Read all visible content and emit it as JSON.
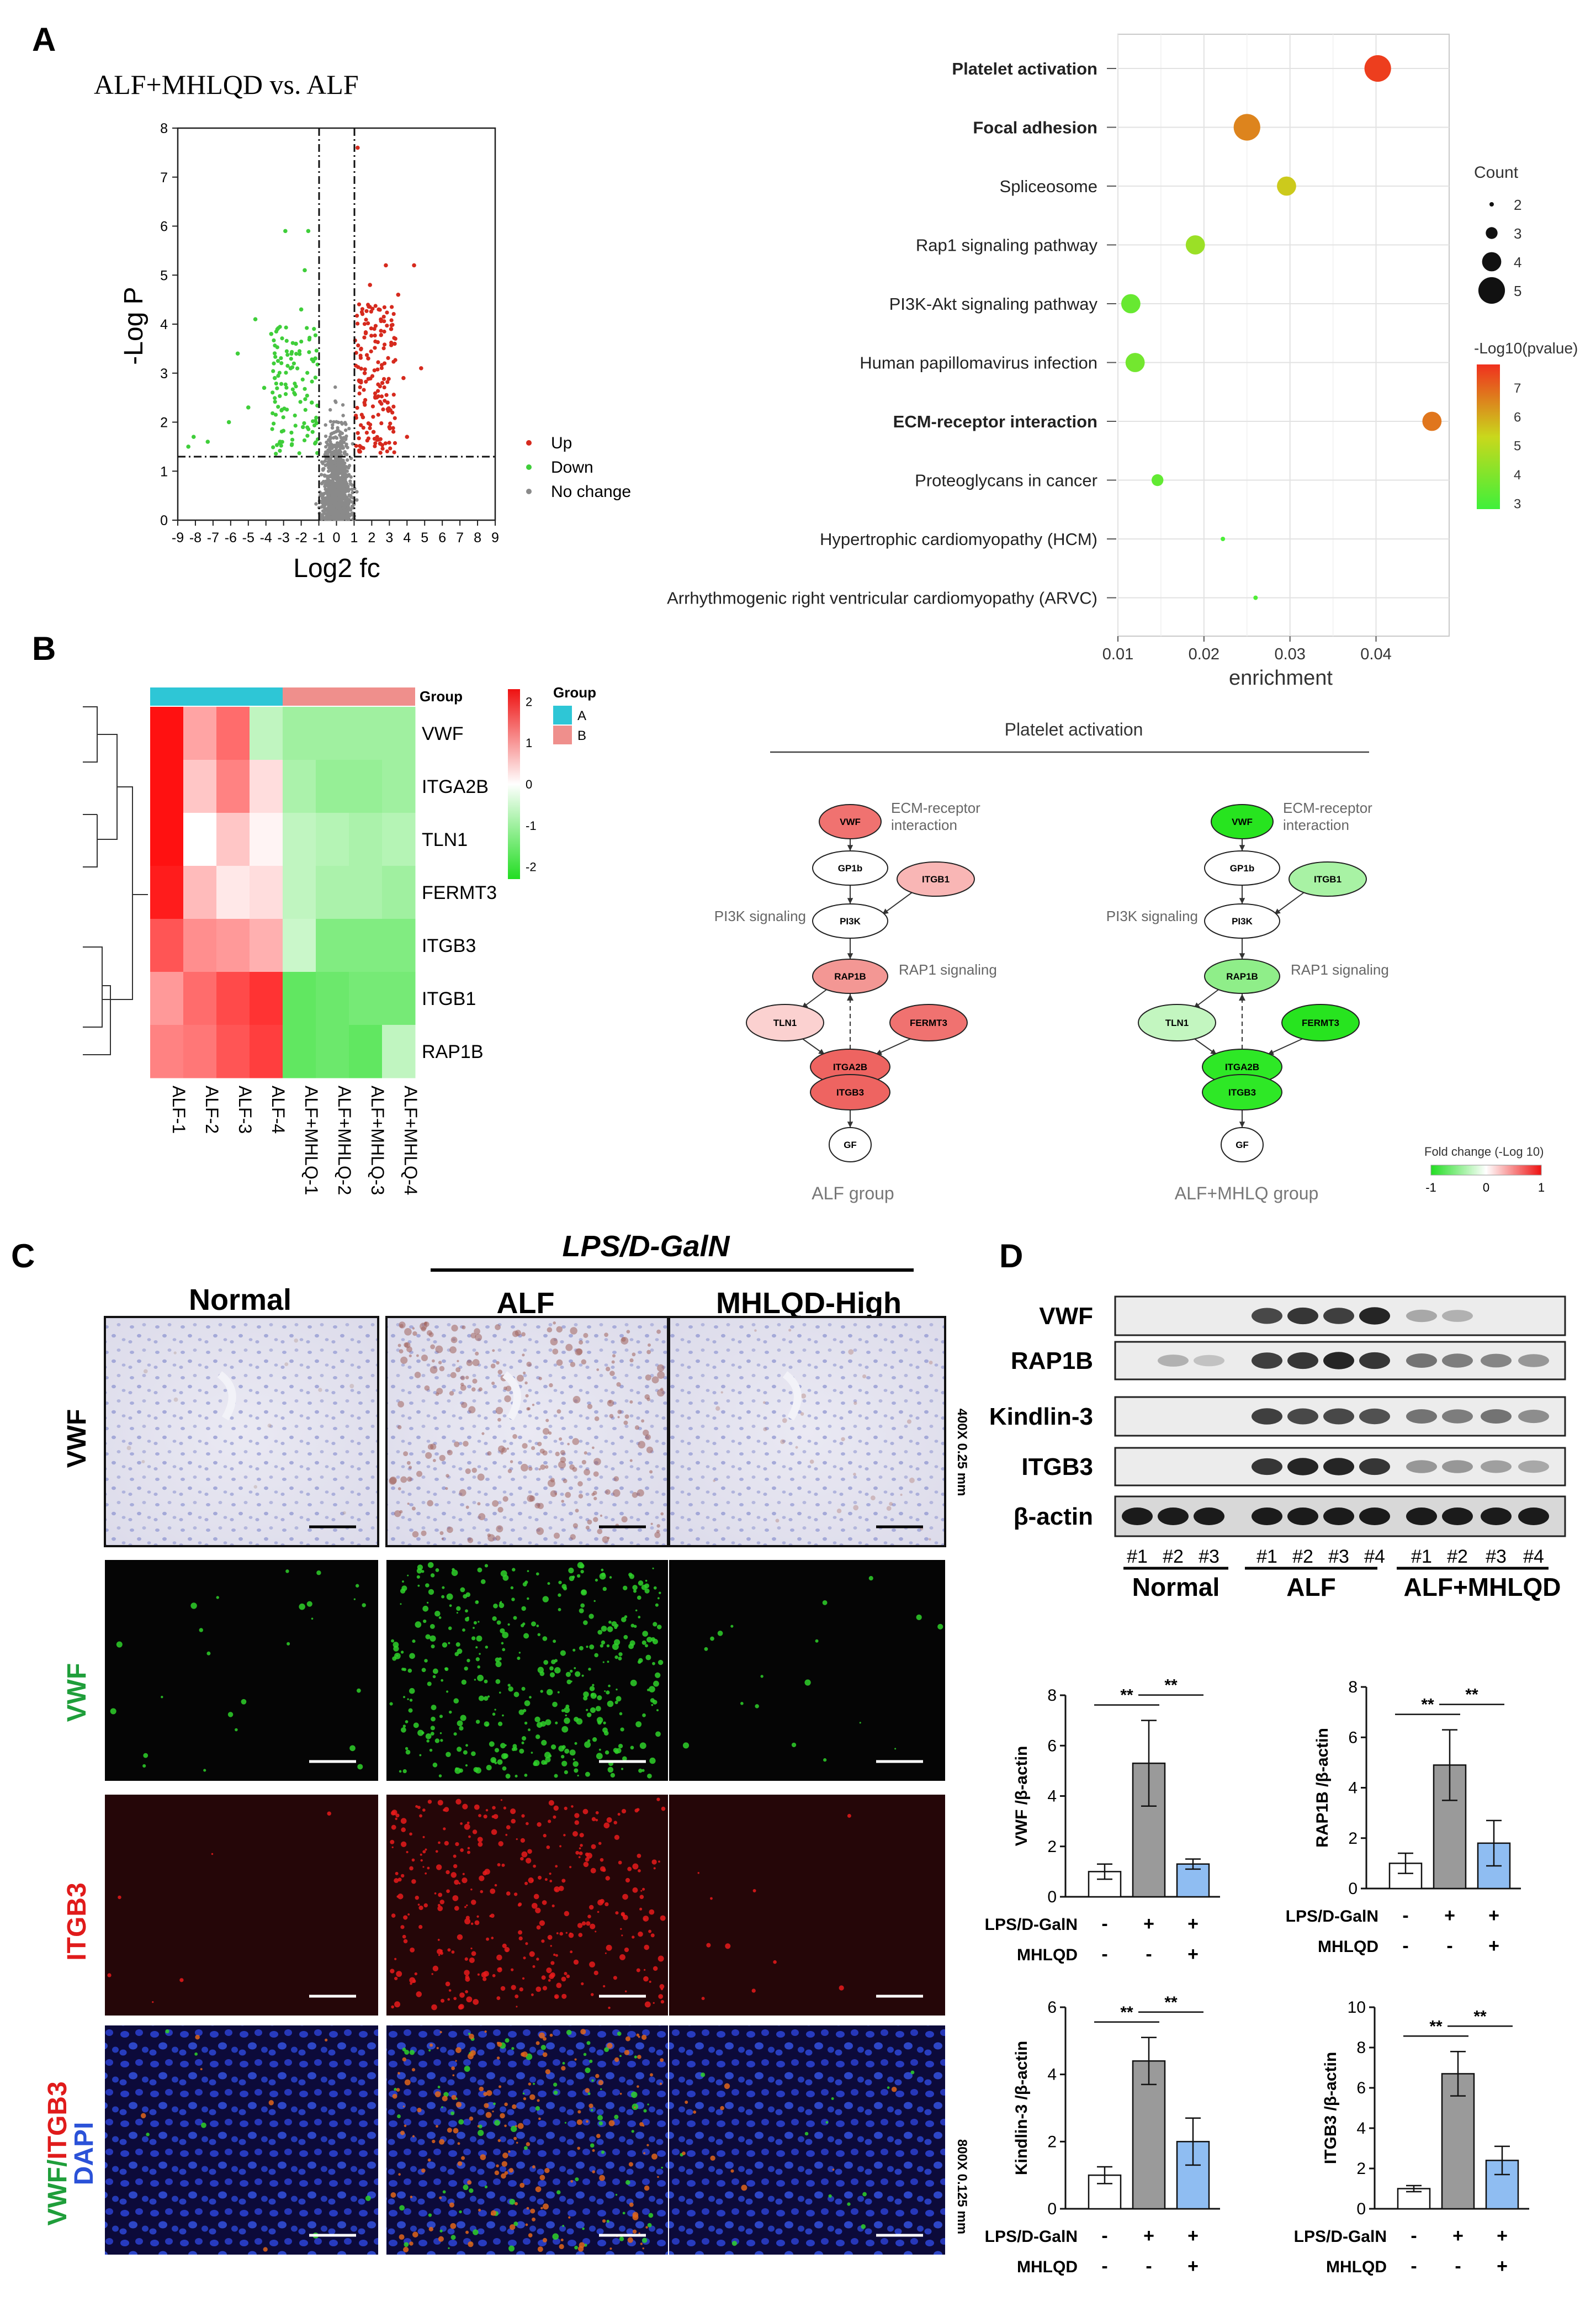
{
  "panels": {
    "a": "A",
    "b": "B",
    "c": "C",
    "d": "D"
  },
  "panel_a": {
    "volcano": {
      "title": "ALF+MHLQD vs. ALF",
      "xlabel": "Log2 fc",
      "ylabel": "-Log P",
      "legend": [
        "Up",
        "Down",
        "No change"
      ],
      "colors": {
        "up": "#d62a1e",
        "down": "#3fce3a",
        "nochange": "#8a8a8a"
      }
    },
    "chart_data": [
      {
        "type": "scatter",
        "title": "ALF+MHLQD vs. ALF",
        "xlabel": "Log2 fc",
        "ylabel": "-Log P",
        "xlim": [
          -9,
          9
        ],
        "ylim": [
          0,
          8
        ],
        "x_ticks": [
          -9,
          -8,
          -7,
          -6,
          -5,
          -4,
          -3,
          -2,
          -1,
          0,
          1,
          2,
          3,
          4,
          5,
          6,
          7,
          8,
          9
        ],
        "y_ticks": [
          0,
          1,
          2,
          3,
          4,
          5,
          6,
          7,
          8
        ],
        "thresholds": {
          "log2fc": [
            -1,
            1
          ],
          "neglogp": 1.3
        },
        "series": [
          {
            "name": "Up",
            "points": [
              [
                1.2,
                7.6
              ],
              [
                2.8,
                5.2
              ],
              [
                3.5,
                4.6
              ],
              [
                4.4,
                5.2
              ],
              [
                3.1,
                3.9
              ],
              [
                2.4,
                4.3
              ],
              [
                1.8,
                3.3
              ],
              [
                3.8,
                2.9
              ],
              [
                2.9,
                2.4
              ],
              [
                1.5,
                2.1
              ],
              [
                2.1,
                1.8
              ],
              [
                4.0,
                1.7
              ],
              [
                1.3,
                1.4
              ],
              [
                3.3,
                3.6
              ],
              [
                2.6,
                2.8
              ],
              [
                1.9,
                4.8
              ],
              [
                4.8,
                3.1
              ],
              [
                2.2,
                2.5
              ],
              [
                1.6,
                3.0
              ],
              [
                3.0,
                1.9
              ]
            ]
          },
          {
            "name": "Down",
            "points": [
              [
                -2.9,
                5.9
              ],
              [
                -1.6,
                5.9
              ],
              [
                -1.8,
                5.1
              ],
              [
                -4.6,
                4.1
              ],
              [
                -3.7,
                3.8
              ],
              [
                -5.6,
                3.4
              ],
              [
                -8.1,
                1.7
              ],
              [
                -8.4,
                1.5
              ],
              [
                -7.3,
                1.6
              ],
              [
                -6.1,
                2.0
              ],
              [
                -4.1,
                2.7
              ],
              [
                -2.6,
                3.1
              ],
              [
                -1.4,
                2.4
              ],
              [
                -3.2,
                1.6
              ],
              [
                -2.0,
                4.3
              ],
              [
                -5.0,
                2.3
              ],
              [
                -1.9,
                1.9
              ],
              [
                -3.5,
                2.9
              ],
              [
                -2.3,
                3.6
              ],
              [
                -1.2,
                3.3
              ]
            ]
          },
          {
            "name": "No change",
            "points": "dense cloud centered at log2fc 0, -LogP 0–5"
          }
        ]
      },
      {
        "type": "scatter",
        "xlabel": "enrichment",
        "xlim": [
          0.01,
          0.0485
        ],
        "x_ticks": [
          0.01,
          0.02,
          0.03,
          0.04
        ],
        "categories": [
          "Platelet activation",
          "Focal adhesion",
          "Spliceosome",
          "Rap1 signaling pathway",
          "PI3K-Akt signaling pathway",
          "Human papillomavirus infection",
          "ECM-receptor interaction",
          "Proteoglycans in cancer",
          "Hypertrophic cardiomyopathy (HCM)",
          "Arrhythmogenic right ventricular cardiomyopathy (ARVC)"
        ],
        "bold_categories": [
          "Platelet activation",
          "Focal adhesion",
          "ECM-receptor interaction"
        ],
        "enrichment": [
          0.0402,
          0.025,
          0.0296,
          0.019,
          0.0115,
          0.012,
          0.0465,
          0.0146,
          0.0222,
          0.026
        ],
        "count": [
          5,
          5,
          4,
          4,
          4,
          4,
          4,
          3,
          2,
          2
        ],
        "neglog10p": [
          7.6,
          6.6,
          5.6,
          4.6,
          3.7,
          3.9,
          6.8,
          3.6,
          3.2,
          3.3
        ],
        "size_legend_title": "Count",
        "size_legend": [
          2,
          3,
          4,
          5
        ],
        "color_legend_title": "-Log10(pvalue)",
        "color_legend_ticks": [
          7,
          6,
          5,
          4,
          3
        ]
      }
    ]
  },
  "panel_b": {
    "heatmap": {
      "chart_data": {
        "type": "heatmap",
        "rows": [
          "VWF",
          "ITGA2B",
          "TLN1",
          "FERMT3",
          "ITGB3",
          "ITGB1",
          "RAP1B"
        ],
        "columns": [
          "ALF-1",
          "ALF-2",
          "ALF-3",
          "ALF-4",
          "ALF+MHLQ-1",
          "ALF+MHLQ-2",
          "ALF+MHLQ-3",
          "ALF+MHLQ-4"
        ],
        "groups": [
          "A",
          "A",
          "A",
          "A",
          "B",
          "B",
          "B",
          "B"
        ],
        "values": [
          [
            2.1,
            0.8,
            1.3,
            -0.6,
            -0.9,
            -0.9,
            -0.9,
            -0.9
          ],
          [
            2.1,
            0.5,
            1.1,
            0.3,
            -0.8,
            -1.0,
            -1.0,
            -0.9
          ],
          [
            2.2,
            0.0,
            0.5,
            0.1,
            -0.6,
            -0.7,
            -0.8,
            -0.7
          ],
          [
            2.0,
            0.6,
            0.2,
            0.3,
            -0.6,
            -0.8,
            -0.8,
            -0.9
          ],
          [
            1.5,
            1.0,
            0.9,
            0.7,
            -0.5,
            -1.2,
            -1.2,
            -1.2
          ],
          [
            0.9,
            1.3,
            1.6,
            1.8,
            -1.5,
            -1.4,
            -1.3,
            -1.3
          ],
          [
            1.1,
            1.2,
            1.5,
            1.7,
            -1.5,
            -1.4,
            -1.5,
            -0.6
          ]
        ],
        "group_label": "Group",
        "group_legend_title": "Group",
        "group_legend": [
          "A",
          "B"
        ],
        "group_colors": {
          "A": "#2ec6d6",
          "B": "#ef8f8c"
        },
        "colorbar_ticks": [
          2,
          1,
          0,
          -1,
          -2
        ]
      }
    },
    "network": {
      "title": "Platelet activation",
      "group_left": "ALF group",
      "group_right": "ALF+MHLQ group",
      "labels": {
        "ecm1": "ECM-receptor",
        "ecm2": "interaction",
        "pi3k": "PI3K signaling",
        "rap1": "RAP1 signaling"
      },
      "nodes": [
        "VWF",
        "GP1b",
        "ITGB1",
        "PI3K",
        "RAP1B",
        "TLN1",
        "FERMT3",
        "ITGA2B",
        "ITGB3",
        "GF"
      ],
      "fold_change_title": "Fold change (-Log 10)",
      "fold_change_ticks": [
        "-1",
        "0",
        "1"
      ],
      "left_colors": {
        "VWF": "#f07270",
        "GP1b": "#ffffff",
        "ITGB1": "#f9b6b5",
        "PI3K": "#ffffff",
        "RAP1B": "#f39794",
        "TLN1": "#fbd1d0",
        "FERMT3": "#f07270",
        "ITGA2B": "#ee6461",
        "ITGB3": "#ee6461",
        "GF": "#ffffff"
      },
      "right_colors": {
        "VWF": "#27e41f",
        "GP1b": "#ffffff",
        "ITGB1": "#a8f2a4",
        "PI3K": "#ffffff",
        "RAP1B": "#8fee89",
        "TLN1": "#c3f6c0",
        "FERMT3": "#27e41f",
        "ITGA2B": "#2ee826",
        "ITGB3": "#2ee826",
        "GF": "#ffffff"
      }
    }
  },
  "panel_c": {
    "treatment": "LPS/D-GalN",
    "columns": [
      "Normal",
      "ALF",
      "MHLQD-High"
    ],
    "row_labels": {
      "vwf_ihc": "VWF",
      "vwf_if": "VWF",
      "itgb3": "ITGB3",
      "merge_a": "VWF/",
      "merge_b": "ITGB3",
      "dapi": "DAPI"
    },
    "magnification_top": "400X 0.25 mm",
    "magnification_bottom": "800X 0.125 mm",
    "colors": {
      "vwf_if": "#1f9e3a",
      "itgb3": "#e01b1b",
      "dapi": "#2b52d8"
    }
  },
  "panel_d": {
    "blot_labels": [
      "VWF",
      "RAP1B",
      "Kindlin-3",
      "ITGB3",
      "β-actin"
    ],
    "lanes": [
      "#1",
      "#2",
      "#3",
      "#1",
      "#2",
      "#3",
      "#4",
      "#1",
      "#2",
      "#3",
      "#4"
    ],
    "groups": [
      "Normal",
      "ALF",
      "ALF+MHLQD"
    ],
    "treat_labels": {
      "lps": "LPS/D-GalN",
      "mhlqd": "MHLQD"
    },
    "lps_signs": [
      "-",
      "+",
      "+"
    ],
    "mhlqd_signs": [
      "-",
      "-",
      "+"
    ],
    "sig": "**",
    "chart_data": [
      {
        "type": "bar",
        "ylabel": "VWF /β-actin",
        "categories": [
          "Normal",
          "ALF",
          "ALF+MHLQD"
        ],
        "values": [
          1.0,
          5.3,
          1.3
        ],
        "errors": [
          0.3,
          1.7,
          0.2
        ],
        "ylim": [
          0,
          8
        ],
        "yticks": [
          0,
          2,
          4,
          6,
          8
        ]
      },
      {
        "type": "bar",
        "ylabel": "RAP1B /β-actin",
        "categories": [
          "Normal",
          "ALF",
          "ALF+MHLQD"
        ],
        "values": [
          1.0,
          4.9,
          1.8
        ],
        "errors": [
          0.4,
          1.4,
          0.9
        ],
        "ylim": [
          0,
          8
        ],
        "yticks": [
          0,
          2,
          4,
          6,
          8
        ]
      },
      {
        "type": "bar",
        "ylabel": "Kindlin-3 /β-actin",
        "categories": [
          "Normal",
          "ALF",
          "ALF+MHLQD"
        ],
        "values": [
          1.0,
          4.4,
          2.0
        ],
        "errors": [
          0.25,
          0.7,
          0.7
        ],
        "ylim": [
          0,
          6
        ],
        "yticks": [
          0,
          2,
          4,
          6
        ]
      },
      {
        "type": "bar",
        "ylabel": "ITGB3 /β-actin",
        "categories": [
          "Normal",
          "ALF",
          "ALF+MHLQD"
        ],
        "values": [
          1.0,
          6.7,
          2.4
        ],
        "errors": [
          0.15,
          1.1,
          0.7
        ],
        "ylim": [
          0,
          10
        ],
        "yticks": [
          0,
          2,
          4,
          6,
          8,
          10
        ]
      }
    ]
  }
}
